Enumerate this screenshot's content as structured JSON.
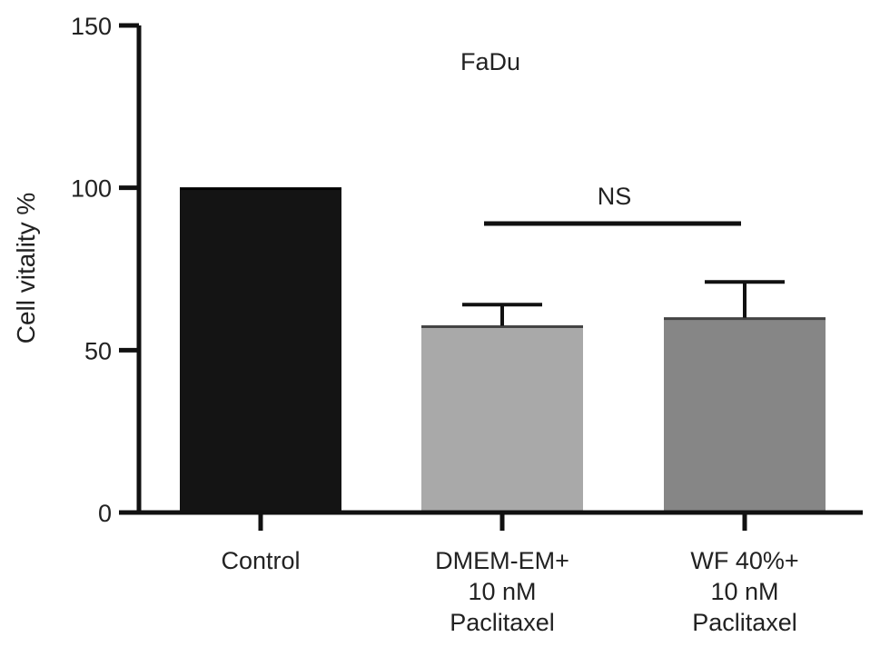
{
  "chart_data": {
    "type": "bar",
    "title": "FaDu",
    "ylabel": "Cell vitality %",
    "xlabel": "",
    "ylim": [
      0,
      150
    ],
    "yticks": [
      0,
      50,
      100,
      150
    ],
    "categories": [
      [
        "Control"
      ],
      [
        "DMEM-EM+",
        "10 nM",
        "Paclitaxel"
      ],
      [
        "WF 40%+",
        "10 nM",
        "Paclitaxel"
      ]
    ],
    "values": [
      100,
      57.5,
      60
    ],
    "error_upper": [
      0,
      64,
      71
    ],
    "bar_colors": [
      "#141414",
      "#a9a9a9",
      "#868686"
    ],
    "annotation": {
      "text": "NS",
      "from_category": 1,
      "to_category": 2,
      "y": 89
    },
    "legend": "none",
    "grid": false
  }
}
